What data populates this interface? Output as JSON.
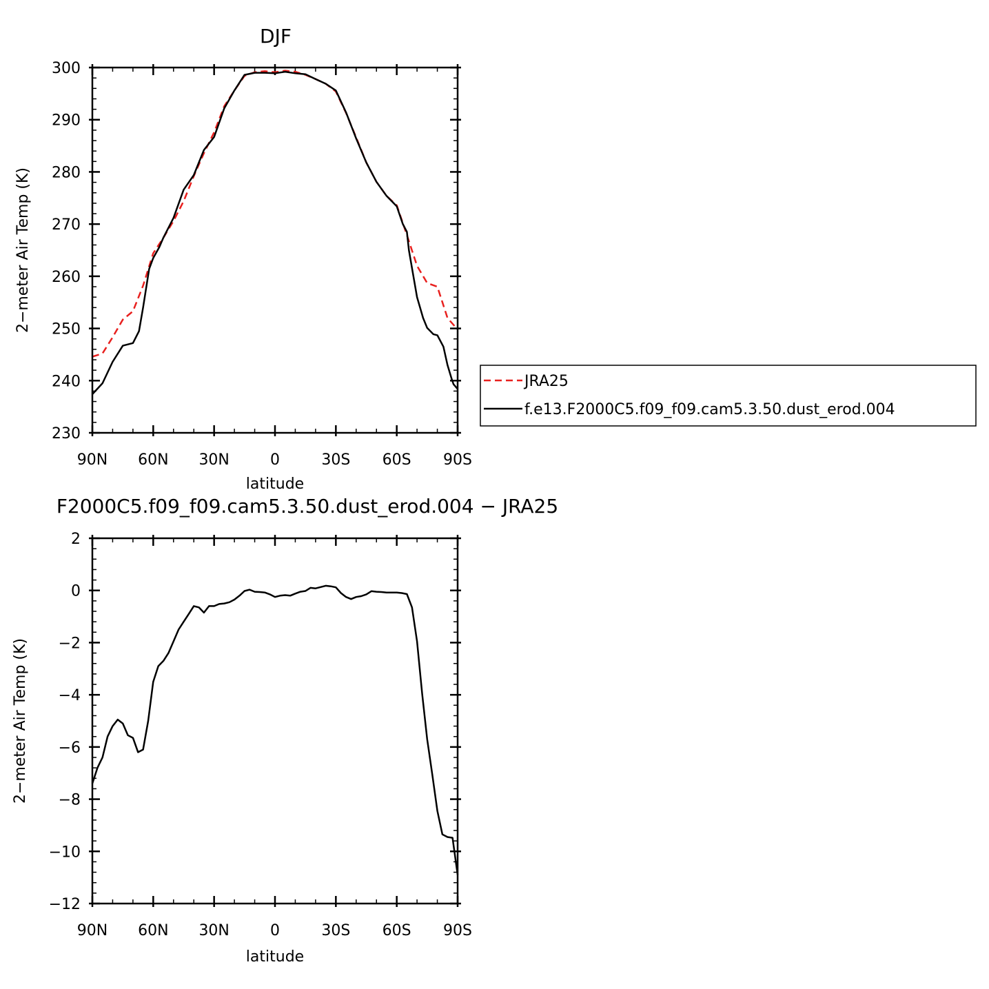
{
  "chart_data": [
    {
      "type": "line",
      "title": "DJF",
      "xlabel": "latitude",
      "ylabel": "2−meter Air Temp (K)",
      "xlim": [
        -90,
        90
      ],
      "ylim": [
        230,
        300
      ],
      "xticks": [
        {
          "value": -90,
          "label": "90N"
        },
        {
          "value": -60,
          "label": "60N"
        },
        {
          "value": -30,
          "label": "30N"
        },
        {
          "value": 0,
          "label": "0"
        },
        {
          "value": 30,
          "label": "30S"
        },
        {
          "value": 60,
          "label": "60S"
        },
        {
          "value": 90,
          "label": "90S"
        }
      ],
      "yticks": [
        {
          "value": 230,
          "label": "230"
        },
        {
          "value": 240,
          "label": "240"
        },
        {
          "value": 250,
          "label": "250"
        },
        {
          "value": 260,
          "label": "260"
        },
        {
          "value": 270,
          "label": "270"
        },
        {
          "value": 280,
          "label": "280"
        },
        {
          "value": 290,
          "label": "290"
        },
        {
          "value": 300,
          "label": "300"
        }
      ],
      "legend": {
        "placement": "right"
      },
      "series": [
        {
          "name": "JRA25",
          "color": "#e8201e",
          "dash": true,
          "x": [
            -90,
            -85,
            -80,
            -75,
            -70,
            -65,
            -60,
            -55,
            -50,
            -45,
            -40,
            -35,
            -30,
            -25,
            -20,
            -15,
            -10,
            -5,
            0,
            5,
            10,
            15,
            20,
            25,
            30,
            35,
            40,
            45,
            50,
            55,
            60,
            65,
            70,
            75,
            80,
            85,
            90
          ],
          "y": [
            244.6,
            245.2,
            248.3,
            251.7,
            253.3,
            258.2,
            264.4,
            267.4,
            270.6,
            274.4,
            279.2,
            283.6,
            287.6,
            292.6,
            295.6,
            298.4,
            299.1,
            299.3,
            299.1,
            299.4,
            299.2,
            298.6,
            297.8,
            296.9,
            295.4,
            291.3,
            286.6,
            281.8,
            278.1,
            275.4,
            273.6,
            267.9,
            262.0,
            258.7,
            258.0,
            252.0,
            249.8
          ]
        },
        {
          "name": "f.e13.F2000C5.f09_f09.cam5.3.50.dust_erod.004",
          "color": "#000000",
          "dash": false,
          "x": [
            -90,
            -85,
            -80,
            -75,
            -70,
            -67,
            -65,
            -62,
            -60,
            -57,
            -55,
            -50,
            -45,
            -40,
            -35,
            -30,
            -25,
            -20,
            -15,
            -10,
            -5,
            0,
            5,
            10,
            15,
            20,
            25,
            30,
            35,
            40,
            45,
            50,
            55,
            60,
            63,
            65,
            66,
            68,
            70,
            73,
            75,
            78,
            80,
            83,
            85,
            87,
            88,
            90
          ],
          "y": [
            237.4,
            239.5,
            243.6,
            246.7,
            247.2,
            249.5,
            254.0,
            261.4,
            263.5,
            265.6,
            267.4,
            271.2,
            276.6,
            279.4,
            284.2,
            286.7,
            292.2,
            295.6,
            298.6,
            299.0,
            299.0,
            298.9,
            299.2,
            298.9,
            298.7,
            297.8,
            296.9,
            295.6,
            291.4,
            286.4,
            281.8,
            278.1,
            275.4,
            273.4,
            270.0,
            268.5,
            265.0,
            260.5,
            256.0,
            252.0,
            250.1,
            248.9,
            248.7,
            246.5,
            243.0,
            240.4,
            239.3,
            238.4
          ]
        }
      ]
    },
    {
      "type": "line",
      "title": "F2000C5.f09_f09.cam5.3.50.dust_erod.004 − JRA25",
      "xlabel": "latitude",
      "ylabel": "2−meter Air Temp (K)",
      "xlim": [
        -90,
        90
      ],
      "ylim": [
        -12,
        2
      ],
      "xticks": [
        {
          "value": -90,
          "label": "90N"
        },
        {
          "value": -60,
          "label": "60N"
        },
        {
          "value": -30,
          "label": "30N"
        },
        {
          "value": 0,
          "label": "0"
        },
        {
          "value": 30,
          "label": "30S"
        },
        {
          "value": 60,
          "label": "60S"
        },
        {
          "value": 90,
          "label": "90S"
        }
      ],
      "yticks": [
        {
          "value": -12,
          "label": "−12"
        },
        {
          "value": -10,
          "label": "−10"
        },
        {
          "value": -8,
          "label": "−8"
        },
        {
          "value": -6,
          "label": "−6"
        },
        {
          "value": -4,
          "label": "−4"
        },
        {
          "value": -2,
          "label": "−2"
        },
        {
          "value": 0,
          "label": "0"
        },
        {
          "value": 2,
          "label": "2"
        }
      ],
      "series": [
        {
          "color": "#000000",
          "dash": false,
          "x": [
            -90,
            -87.5,
            -85,
            -82.5,
            -80,
            -77.5,
            -75,
            -72.5,
            -70,
            -67.5,
            -65,
            -62.5,
            -60,
            -57.5,
            -55,
            -52.5,
            -50,
            -47.5,
            -45,
            -42.5,
            -40,
            -37.5,
            -35,
            -32.5,
            -30,
            -27.5,
            -25,
            -22.5,
            -20,
            -17.5,
            -15,
            -12.5,
            -10,
            -7.5,
            -5,
            -2.5,
            0,
            2.5,
            5,
            7.5,
            10,
            12.5,
            15,
            17.5,
            20,
            22.5,
            25,
            27.5,
            30,
            32.5,
            35,
            37.5,
            40,
            42.5,
            45,
            47.5,
            50,
            52.5,
            55,
            57.5,
            60,
            62.5,
            65,
            67.5,
            70,
            72.5,
            75,
            77.5,
            80,
            82.5,
            85,
            87.5,
            90
          ],
          "y": [
            -7.4,
            -6.8,
            -6.4,
            -5.6,
            -5.2,
            -4.95,
            -5.1,
            -5.55,
            -5.65,
            -6.2,
            -6.1,
            -5.0,
            -3.5,
            -2.9,
            -2.7,
            -2.4,
            -1.95,
            -1.5,
            -1.2,
            -0.9,
            -0.6,
            -0.65,
            -0.85,
            -0.6,
            -0.6,
            -0.52,
            -0.5,
            -0.45,
            -0.35,
            -0.2,
            -0.02,
            0.03,
            -0.05,
            -0.06,
            -0.08,
            -0.15,
            -0.25,
            -0.2,
            -0.18,
            -0.2,
            -0.12,
            -0.05,
            -0.02,
            0.1,
            0.08,
            0.13,
            0.18,
            0.16,
            0.12,
            -0.1,
            -0.25,
            -0.33,
            -0.25,
            -0.22,
            -0.15,
            -0.03,
            -0.05,
            -0.06,
            -0.08,
            -0.08,
            -0.08,
            -0.1,
            -0.14,
            -0.65,
            -1.95,
            -3.95,
            -5.7,
            -7.05,
            -8.45,
            -9.35,
            -9.45,
            -9.48,
            -10.9
          ]
        }
      ]
    }
  ]
}
